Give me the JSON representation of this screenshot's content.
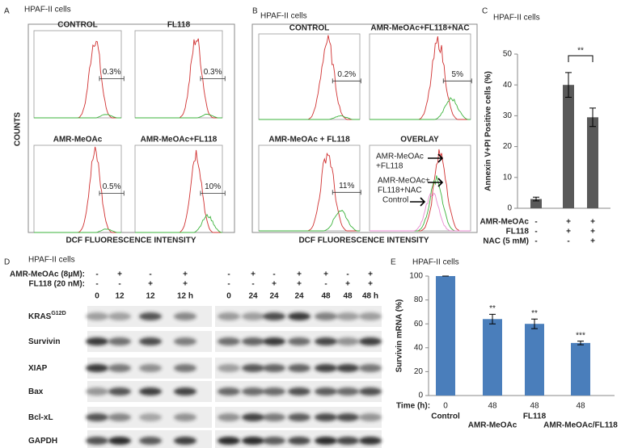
{
  "panel_letters": [
    "A",
    "B",
    "C",
    "D",
    "E"
  ],
  "panel_a": {
    "title": "HPAF-II cells",
    "y_label": "COUNTS",
    "x_label": "DCF FLUORESCENCE INTENSITY",
    "plots": [
      {
        "label": "CONTROL",
        "percent": "0.3%"
      },
      {
        "label": "FL118",
        "percent": "0.3%"
      },
      {
        "label": "AMR-MeOAc",
        "percent": "0.5%"
      },
      {
        "label": "AMR-MeOAc+FL118",
        "percent": "10%"
      }
    ]
  },
  "panel_b": {
    "title": "HPAF-II cells",
    "x_label": "DCF FLUORESCENCE INTENSITY",
    "plots": [
      {
        "label": "CONTROL",
        "percent": "0.2%"
      },
      {
        "label": "AMR-MeOAc+FL118+NAC",
        "percent": "5%"
      },
      {
        "label": "AMR-MeOAc + FL118",
        "percent": "11%"
      }
    ],
    "overlay": {
      "label": "OVERLAY",
      "annotations": [
        [
          "AMR-MeOAc",
          "+FL118"
        ],
        [
          "AMR-MeOAc+",
          "FL118+NAC"
        ],
        [
          "Control"
        ]
      ]
    }
  },
  "chart_data": [
    {
      "type": "bar",
      "title": "HPAF-II cells",
      "y_label": "Annexin V+PI Positive cells (%)",
      "values": [
        3,
        40,
        29.5
      ],
      "errors": [
        0.6,
        4,
        3
      ],
      "color": "#595959",
      "ylim": [
        0,
        50
      ],
      "yticks": [
        0,
        10,
        20,
        30,
        40,
        50
      ],
      "conditions": [
        {
          "label": "AMR-MeOAc",
          "marks": [
            "-",
            "+",
            "+"
          ]
        },
        {
          "label": "FL118",
          "marks": [
            "-",
            "+",
            "+"
          ]
        },
        {
          "label": "NAC (5 mM)",
          "marks": [
            "-",
            "-",
            "+"
          ]
        }
      ],
      "annotation": "**"
    },
    {
      "type": "bar",
      "title": "HPAF-II cells",
      "y_label": "Survivin mRNA (%)",
      "x_prefix": "Time (h):",
      "categories": [
        "0",
        "48",
        "48",
        "48"
      ],
      "groups": [
        "Control",
        "AMR-MeOAc",
        "FL118",
        "AMR-MeOAc/FL118"
      ],
      "values": [
        100,
        64,
        60,
        44
      ],
      "errors": [
        0,
        4,
        4,
        1.5
      ],
      "annotations": [
        null,
        "**",
        "**",
        "***"
      ],
      "color": "#4a7ebb",
      "ylim": [
        0,
        100
      ],
      "yticks": [
        0,
        20,
        40,
        60,
        80,
        100
      ]
    }
  ],
  "panel_d": {
    "title": "HPAF-II cells",
    "treatments": [
      {
        "label": "AMR-MeOAc (8µM):",
        "left": [
          "-",
          "+",
          "-",
          "+"
        ],
        "right": [
          "-",
          "+",
          "-",
          "+",
          "+",
          "-",
          "+"
        ]
      },
      {
        "label": "FL118 (20 nM):",
        "left": [
          "-",
          "-",
          "+",
          "+"
        ],
        "right": [
          "-",
          "-",
          "+",
          "+",
          "-",
          "+",
          "+"
        ]
      }
    ],
    "times": {
      "left": [
        "0",
        "12",
        "12",
        "12 h"
      ],
      "right": [
        "0",
        "24",
        "24",
        "24",
        "48",
        "48",
        "48 h"
      ]
    },
    "proteins": [
      {
        "name": "KRAS",
        "sup": "G12D"
      },
      {
        "name": "Survivin"
      },
      {
        "name": "XIAP"
      },
      {
        "name": "Bax"
      },
      {
        "name": "Bcl-xL"
      },
      {
        "name": "GAPDH"
      }
    ]
  }
}
